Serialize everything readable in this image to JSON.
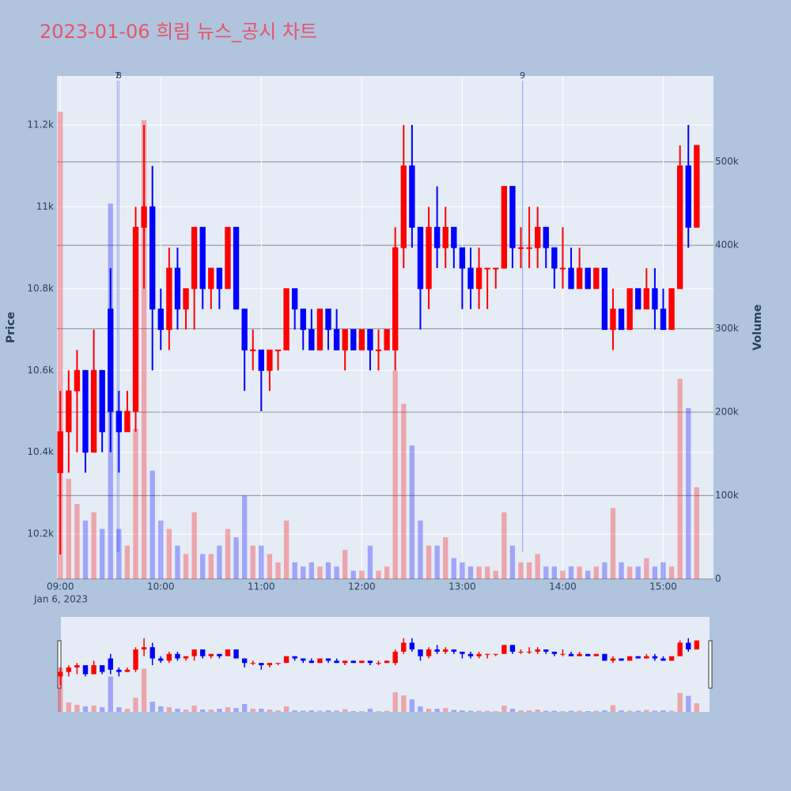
{
  "chart_data": {
    "type": "candlestick",
    "title": "2023-01-06 희림 뉴스_공시 차트",
    "y_label": "Price",
    "y2_label": "Volume",
    "x_date_label": "Jan 6, 2023",
    "increasing_color": "#ff0000",
    "decreasing_color": "#0000ff",
    "x": [
      "2023-01-06 09:00",
      "2023-01-06 09:05",
      "2023-01-06 09:10",
      "2023-01-06 09:15",
      "2023-01-06 09:20",
      "2023-01-06 09:25",
      "2023-01-06 09:30",
      "2023-01-06 09:35",
      "2023-01-06 09:40",
      "2023-01-06 09:45",
      "2023-01-06 09:50",
      "2023-01-06 09:55",
      "2023-01-06 10:00",
      "2023-01-06 10:05",
      "2023-01-06 10:10",
      "2023-01-06 10:15",
      "2023-01-06 10:20",
      "2023-01-06 10:25",
      "2023-01-06 10:30",
      "2023-01-06 10:35",
      "2023-01-06 10:40",
      "2023-01-06 10:45",
      "2023-01-06 10:50",
      "2023-01-06 10:55",
      "2023-01-06 11:00",
      "2023-01-06 11:05",
      "2023-01-06 11:10",
      "2023-01-06 11:15",
      "2023-01-06 11:20",
      "2023-01-06 11:25",
      "2023-01-06 11:30",
      "2023-01-06 11:35",
      "2023-01-06 11:40",
      "2023-01-06 11:45",
      "2023-01-06 11:50",
      "2023-01-06 11:55",
      "2023-01-06 12:00",
      "2023-01-06 12:05",
      "2023-01-06 12:10",
      "2023-01-06 12:15",
      "2023-01-06 12:20",
      "2023-01-06 12:25",
      "2023-01-06 12:30",
      "2023-01-06 12:35",
      "2023-01-06 12:40",
      "2023-01-06 12:45",
      "2023-01-06 12:50",
      "2023-01-06 12:55",
      "2023-01-06 13:00",
      "2023-01-06 13:05",
      "2023-01-06 13:10",
      "2023-01-06 13:15",
      "2023-01-06 13:20",
      "2023-01-06 13:25",
      "2023-01-06 13:30",
      "2023-01-06 13:35",
      "2023-01-06 13:40",
      "2023-01-06 13:45",
      "2023-01-06 13:50",
      "2023-01-06 13:55",
      "2023-01-06 14:00",
      "2023-01-06 14:05",
      "2023-01-06 14:10",
      "2023-01-06 14:15",
      "2023-01-06 14:20",
      "2023-01-06 14:25",
      "2023-01-06 14:30",
      "2023-01-06 14:35",
      "2023-01-06 14:40",
      "2023-01-06 14:45",
      "2023-01-06 14:50",
      "2023-01-06 14:55",
      "2023-01-06 15:00",
      "2023-01-06 15:05",
      "2023-01-06 15:10",
      "2023-01-06 15:15",
      "2023-01-06 15:20"
    ],
    "open": [
      10350,
      10450,
      10550,
      10600,
      10400,
      10600,
      10750,
      10500,
      10450,
      10500,
      10950,
      11000,
      10750,
      10700,
      10850,
      10750,
      10800,
      10950,
      10800,
      10850,
      10800,
      10950,
      10750,
      10650,
      10650,
      10600,
      10650,
      10650,
      10800,
      10750,
      10700,
      10650,
      10750,
      10700,
      10650,
      10700,
      10650,
      10700,
      10650,
      10650,
      10650,
      10900,
      11100,
      10950,
      10800,
      10950,
      10900,
      10950,
      10900,
      10850,
      10800,
      10850,
      10850,
      10850,
      11050,
      10900,
      10900,
      10900,
      10950,
      10900,
      10850,
      10850,
      10800,
      10850,
      10800,
      10850,
      10700,
      10750,
      10700,
      10800,
      10750,
      10800,
      10750,
      10700,
      10800,
      11100,
      10950
    ],
    "high": [
      10550,
      10600,
      10650,
      10600,
      10700,
      10600,
      10850,
      10550,
      10550,
      11000,
      11200,
      11100,
      10800,
      10900,
      10900,
      10800,
      10950,
      10950,
      10850,
      10850,
      10950,
      10950,
      10750,
      10700,
      10650,
      10650,
      10650,
      10800,
      10800,
      10750,
      10750,
      10750,
      10750,
      10750,
      10700,
      10700,
      10700,
      10700,
      10700,
      10700,
      10950,
      11200,
      11200,
      10950,
      11000,
      11050,
      11000,
      10950,
      10900,
      10900,
      10900,
      10850,
      10850,
      11050,
      11050,
      10950,
      11000,
      11000,
      10950,
      10900,
      10950,
      10900,
      10900,
      10850,
      10850,
      10850,
      10800,
      10750,
      10800,
      10800,
      10850,
      10850,
      10800,
      10800,
      11150,
      11200,
      11150
    ],
    "low": [
      10150,
      10350,
      10400,
      10350,
      10400,
      10400,
      10400,
      10350,
      10450,
      10450,
      10800,
      10600,
      10650,
      10650,
      10700,
      10700,
      10700,
      10750,
      10750,
      10750,
      10800,
      10750,
      10550,
      10600,
      10500,
      10550,
      10600,
      10650,
      10700,
      10650,
      10650,
      10650,
      10650,
      10650,
      10600,
      10650,
      10650,
      10600,
      10600,
      10650,
      10600,
      10850,
      10900,
      10700,
      10750,
      10850,
      10850,
      10850,
      10750,
      10750,
      10750,
      10750,
      10800,
      10850,
      10850,
      10850,
      10850,
      10850,
      10850,
      10800,
      10800,
      10800,
      10800,
      10800,
      10800,
      10700,
      10650,
      10700,
      10700,
      10750,
      10750,
      10700,
      10700,
      10700,
      10800,
      10900,
      10950
    ],
    "close": [
      10450,
      10550,
      10600,
      10400,
      10600,
      10450,
      10500,
      10450,
      10500,
      10950,
      11000,
      10750,
      10700,
      10850,
      10750,
      10800,
      10950,
      10800,
      10850,
      10800,
      10950,
      10750,
      10650,
      10650,
      10600,
      10650,
      10650,
      10800,
      10750,
      10700,
      10650,
      10750,
      10700,
      10650,
      10700,
      10650,
      10700,
      10650,
      10650,
      10700,
      10900,
      11100,
      10950,
      10800,
      10950,
      10900,
      10950,
      10900,
      10850,
      10800,
      10850,
      10850,
      10850,
      11050,
      10900,
      10900,
      10900,
      10950,
      10900,
      10850,
      10850,
      10800,
      10850,
      10800,
      10850,
      10700,
      10750,
      10700,
      10800,
      10750,
      10800,
      10750,
      10700,
      10800,
      11100,
      10950,
      11150
    ],
    "volume": [
      560000,
      120000,
      90000,
      70000,
      80000,
      60000,
      450000,
      60000,
      40000,
      180000,
      550000,
      130000,
      70000,
      60000,
      40000,
      30000,
      80000,
      30000,
      30000,
      40000,
      60000,
      50000,
      100000,
      40000,
      40000,
      30000,
      20000,
      70000,
      20000,
      15000,
      20000,
      15000,
      20000,
      15000,
      35000,
      10000,
      10000,
      40000,
      10000,
      15000,
      250000,
      210000,
      160000,
      70000,
      40000,
      40000,
      50000,
      25000,
      20000,
      15000,
      15000,
      15000,
      10000,
      80000,
      40000,
      20000,
      20000,
      30000,
      15000,
      15000,
      10000,
      15000,
      15000,
      10000,
      15000,
      20000,
      85000,
      20000,
      15000,
      15000,
      25000,
      15000,
      20000,
      15000,
      240000,
      205000,
      110000
    ],
    "xlim": [
      "2023-01-06 08:58",
      "2023-01-06 15:30"
    ],
    "xticks": [
      {
        "value": "2023-01-06 09:00",
        "label": "09:00"
      },
      {
        "value": "2023-01-06 10:00",
        "label": "10:00"
      },
      {
        "value": "2023-01-06 11:00",
        "label": "11:00"
      },
      {
        "value": "2023-01-06 12:00",
        "label": "12:00"
      },
      {
        "value": "2023-01-06 13:00",
        "label": "13:00"
      },
      {
        "value": "2023-01-06 14:00",
        "label": "14:00"
      },
      {
        "value": "2023-01-06 15:00",
        "label": "15:00"
      }
    ],
    "ylim": [
      10090,
      11320
    ],
    "yticks": [
      {
        "value": 10200,
        "label": "10.2k"
      },
      {
        "value": 10400,
        "label": "10.4k"
      },
      {
        "value": 10600,
        "label": "10.6k"
      },
      {
        "value": 10800,
        "label": "10.8k"
      },
      {
        "value": 11000,
        "label": "11k"
      },
      {
        "value": 11200,
        "label": "11.2k"
      }
    ],
    "y2lim": [
      0,
      603000
    ],
    "y2ticks": [
      0,
      {
        "value": 100000,
        "label": "100k"
      },
      {
        "value": 200000,
        "label": "200k"
      },
      {
        "value": 300000,
        "label": "300k"
      },
      {
        "value": 400000,
        "label": "400k"
      },
      {
        "value": 500000,
        "label": "500k"
      }
    ],
    "annotations": [
      {
        "x": "2023-01-06 09:34",
        "text": "7"
      },
      {
        "x": "2023-01-06 09:35",
        "text": "8"
      },
      {
        "x": "2023-01-06 13:36",
        "text": "9"
      }
    ],
    "grid": true
  }
}
